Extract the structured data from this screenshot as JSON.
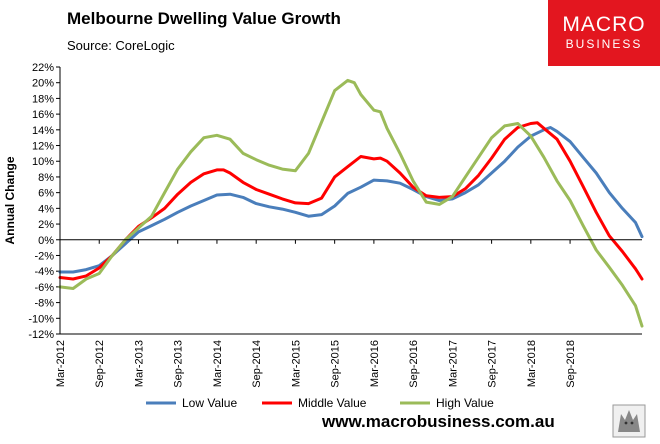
{
  "header": {
    "title": "Melbourne Dwelling Value Growth",
    "source": "Source: CoreLogic"
  },
  "brand": {
    "line1": "MACRO",
    "line2": "BUSINESS",
    "color": "#e3161f"
  },
  "footer": {
    "url": "www.macrobusiness.com.au"
  },
  "chart_data": {
    "type": "line",
    "title": "Melbourne Dwelling Value Growth",
    "xlabel": "",
    "ylabel": "Annual Change",
    "ylim": [
      -12,
      22
    ],
    "y_ticks": [
      "-12%",
      "-10%",
      "-8%",
      "-6%",
      "-4%",
      "-2%",
      "0%",
      "2%",
      "4%",
      "6%",
      "8%",
      "10%",
      "12%",
      "14%",
      "16%",
      "18%",
      "20%",
      "22%"
    ],
    "x_tick_labels": [
      "Mar-2012",
      "Sep-2012",
      "Mar-2013",
      "Sep-2013",
      "Mar-2014",
      "Sep-2014",
      "Mar-2015",
      "Sep-2015",
      "Mar-2016",
      "Sep-2016",
      "Mar-2017",
      "Sep-2017",
      "Mar-2018",
      "Sep-2018"
    ],
    "legend_position": "bottom",
    "series": [
      {
        "name": "Low Value",
        "color": "#4a7ebb",
        "points": [
          [
            0,
            -4.1
          ],
          [
            2,
            -4.1
          ],
          [
            4,
            -3.8
          ],
          [
            6,
            -3.3
          ],
          [
            8,
            -2.0
          ],
          [
            10,
            -0.5
          ],
          [
            12,
            1.0
          ],
          [
            14,
            1.8
          ],
          [
            16,
            2.6
          ],
          [
            18,
            3.5
          ],
          [
            20,
            4.3
          ],
          [
            22,
            5.0
          ],
          [
            24,
            5.7
          ],
          [
            26,
            5.8
          ],
          [
            28,
            5.4
          ],
          [
            30,
            4.6
          ],
          [
            32,
            4.2
          ],
          [
            34,
            3.9
          ],
          [
            36,
            3.5
          ],
          [
            38,
            3.0
          ],
          [
            40,
            3.2
          ],
          [
            42,
            4.3
          ],
          [
            44,
            5.9
          ],
          [
            46,
            6.7
          ],
          [
            48,
            7.6
          ],
          [
            50,
            7.5
          ],
          [
            52,
            7.2
          ],
          [
            54,
            6.4
          ],
          [
            56,
            5.5
          ],
          [
            58,
            5.0
          ],
          [
            60,
            5.2
          ],
          [
            62,
            6.0
          ],
          [
            64,
            7.0
          ],
          [
            66,
            8.5
          ],
          [
            68,
            10.0
          ],
          [
            70,
            11.8
          ],
          [
            72,
            13.2
          ],
          [
            74,
            14.0
          ],
          [
            75,
            14.3
          ],
          [
            76,
            13.8
          ],
          [
            78,
            12.5
          ],
          [
            80,
            10.5
          ],
          [
            82,
            8.5
          ],
          [
            84,
            6.0
          ],
          [
            86,
            4.0
          ],
          [
            88,
            2.2
          ],
          [
            89,
            0.4
          ]
        ]
      },
      {
        "name": "Middle Value",
        "color": "#ff0000",
        "points": [
          [
            0,
            -4.8
          ],
          [
            2,
            -5.0
          ],
          [
            4,
            -4.6
          ],
          [
            6,
            -3.6
          ],
          [
            8,
            -2.0
          ],
          [
            10,
            0.0
          ],
          [
            12,
            1.7
          ],
          [
            14,
            2.8
          ],
          [
            16,
            4.0
          ],
          [
            18,
            5.8
          ],
          [
            20,
            7.3
          ],
          [
            22,
            8.4
          ],
          [
            24,
            8.9
          ],
          [
            25,
            8.9
          ],
          [
            26,
            8.5
          ],
          [
            28,
            7.3
          ],
          [
            30,
            6.4
          ],
          [
            32,
            5.8
          ],
          [
            34,
            5.2
          ],
          [
            36,
            4.7
          ],
          [
            38,
            4.6
          ],
          [
            40,
            5.3
          ],
          [
            42,
            8.0
          ],
          [
            44,
            9.3
          ],
          [
            46,
            10.6
          ],
          [
            48,
            10.3
          ],
          [
            49,
            10.4
          ],
          [
            50,
            10.0
          ],
          [
            52,
            8.5
          ],
          [
            54,
            6.7
          ],
          [
            56,
            5.6
          ],
          [
            58,
            5.4
          ],
          [
            60,
            5.5
          ],
          [
            62,
            6.5
          ],
          [
            64,
            8.2
          ],
          [
            66,
            10.4
          ],
          [
            68,
            12.8
          ],
          [
            70,
            14.3
          ],
          [
            72,
            14.8
          ],
          [
            73,
            14.9
          ],
          [
            74,
            14.2
          ],
          [
            76,
            12.8
          ],
          [
            78,
            10.0
          ],
          [
            80,
            6.8
          ],
          [
            82,
            3.5
          ],
          [
            84,
            0.5
          ],
          [
            86,
            -1.5
          ],
          [
            88,
            -3.7
          ],
          [
            89,
            -5.0
          ]
        ]
      },
      {
        "name": "High Value",
        "color": "#9bbb59",
        "points": [
          [
            0,
            -6.0
          ],
          [
            2,
            -6.2
          ],
          [
            4,
            -5.0
          ],
          [
            6,
            -4.3
          ],
          [
            8,
            -2.0
          ],
          [
            10,
            0.0
          ],
          [
            12,
            1.5
          ],
          [
            14,
            3.0
          ],
          [
            16,
            6.0
          ],
          [
            18,
            9.0
          ],
          [
            20,
            11.2
          ],
          [
            22,
            13.0
          ],
          [
            24,
            13.3
          ],
          [
            26,
            12.8
          ],
          [
            28,
            11.0
          ],
          [
            30,
            10.2
          ],
          [
            32,
            9.5
          ],
          [
            34,
            9.0
          ],
          [
            36,
            8.8
          ],
          [
            38,
            11.0
          ],
          [
            40,
            15.0
          ],
          [
            42,
            19.0
          ],
          [
            44,
            20.3
          ],
          [
            45,
            20.0
          ],
          [
            46,
            18.5
          ],
          [
            48,
            16.5
          ],
          [
            49,
            16.3
          ],
          [
            50,
            14.2
          ],
          [
            52,
            11.0
          ],
          [
            54,
            7.5
          ],
          [
            56,
            4.8
          ],
          [
            58,
            4.5
          ],
          [
            60,
            5.5
          ],
          [
            62,
            8.0
          ],
          [
            64,
            10.5
          ],
          [
            66,
            13.0
          ],
          [
            68,
            14.5
          ],
          [
            70,
            14.8
          ],
          [
            72,
            13.2
          ],
          [
            74,
            10.5
          ],
          [
            76,
            7.5
          ],
          [
            78,
            5.0
          ],
          [
            80,
            1.8
          ],
          [
            82,
            -1.3
          ],
          [
            84,
            -3.5
          ],
          [
            86,
            -5.8
          ],
          [
            88,
            -8.4
          ],
          [
            89,
            -11.0
          ]
        ]
      }
    ]
  }
}
